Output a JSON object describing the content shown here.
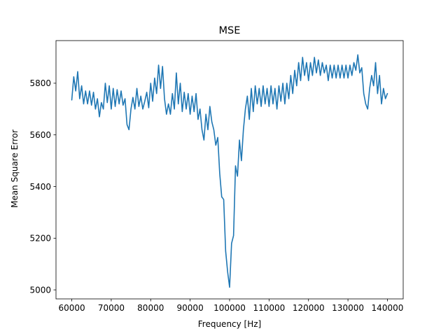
{
  "chart_data": {
    "type": "line",
    "title": "MSE",
    "xlabel": "Frequency [Hz]",
    "ylabel": "Mean Square Error",
    "xlim": [
      56000,
      144000
    ],
    "ylim": [
      4965,
      5965
    ],
    "xticks": [
      60000,
      70000,
      80000,
      90000,
      100000,
      110000,
      120000,
      130000,
      140000
    ],
    "yticks": [
      5000,
      5200,
      5400,
      5600,
      5800
    ],
    "grid": false,
    "legend": "none",
    "series": [
      {
        "color": "#1f77b4",
        "x": [
          60000,
          60500,
          61000,
          61500,
          62000,
          62500,
          63000,
          63500,
          64000,
          64500,
          65000,
          65500,
          66000,
          66500,
          67000,
          67500,
          68000,
          68500,
          69000,
          69500,
          70000,
          70500,
          71000,
          71500,
          72000,
          72500,
          73000,
          73500,
          74000,
          74500,
          75000,
          75500,
          76000,
          76500,
          77000,
          77500,
          78000,
          78500,
          79000,
          79500,
          80000,
          80500,
          81000,
          81500,
          82000,
          82500,
          83000,
          83500,
          84000,
          84500,
          85000,
          85500,
          86000,
          86500,
          87000,
          87500,
          88000,
          88500,
          89000,
          89500,
          90000,
          90500,
          91000,
          91500,
          92000,
          92500,
          93000,
          93500,
          94000,
          94500,
          95000,
          95500,
          96000,
          96500,
          97000,
          97500,
          98000,
          98500,
          99000,
          99500,
          100000,
          100500,
          101000,
          101500,
          102000,
          102500,
          103000,
          103500,
          104000,
          104500,
          105000,
          105500,
          106000,
          106500,
          107000,
          107500,
          108000,
          108500,
          109000,
          109500,
          110000,
          110500,
          111000,
          111500,
          112000,
          112500,
          113000,
          113500,
          114000,
          114500,
          115000,
          115500,
          116000,
          116500,
          117000,
          117500,
          118000,
          118500,
          119000,
          119500,
          120000,
          120500,
          121000,
          121500,
          122000,
          122500,
          123000,
          123500,
          124000,
          124500,
          125000,
          125500,
          126000,
          126500,
          127000,
          127500,
          128000,
          128500,
          129000,
          129500,
          130000,
          130500,
          131000,
          131500,
          132000,
          132500,
          133000,
          133500,
          134000,
          134500,
          135000,
          135500,
          136000,
          136500,
          137000,
          137500,
          138000,
          138500,
          139000,
          139500,
          140000
        ],
        "y": [
          5735,
          5825,
          5770,
          5845,
          5740,
          5790,
          5720,
          5770,
          5720,
          5770,
          5715,
          5765,
          5700,
          5740,
          5670,
          5725,
          5700,
          5800,
          5725,
          5790,
          5700,
          5780,
          5710,
          5775,
          5720,
          5770,
          5715,
          5740,
          5640,
          5620,
          5700,
          5745,
          5700,
          5780,
          5710,
          5750,
          5700,
          5730,
          5765,
          5705,
          5800,
          5730,
          5820,
          5760,
          5870,
          5780,
          5865,
          5740,
          5680,
          5720,
          5680,
          5760,
          5700,
          5840,
          5720,
          5800,
          5690,
          5765,
          5700,
          5760,
          5680,
          5750,
          5690,
          5760,
          5660,
          5700,
          5620,
          5580,
          5680,
          5620,
          5710,
          5650,
          5620,
          5560,
          5590,
          5450,
          5360,
          5350,
          5150,
          5070,
          5010,
          5180,
          5210,
          5480,
          5440,
          5580,
          5500,
          5620,
          5700,
          5750,
          5660,
          5780,
          5690,
          5790,
          5720,
          5780,
          5710,
          5790,
          5720,
          5780,
          5710,
          5790,
          5720,
          5780,
          5700,
          5790,
          5730,
          5800,
          5720,
          5800,
          5740,
          5830,
          5760,
          5850,
          5790,
          5880,
          5810,
          5900,
          5830,
          5880,
          5810,
          5880,
          5830,
          5900,
          5840,
          5890,
          5830,
          5880,
          5840,
          5870,
          5810,
          5870,
          5820,
          5870,
          5820,
          5870,
          5820,
          5870,
          5820,
          5870,
          5820,
          5870,
          5830,
          5880,
          5850,
          5910,
          5840,
          5860,
          5760,
          5720,
          5700,
          5780,
          5830,
          5790,
          5880,
          5760,
          5830,
          5720,
          5780,
          5740,
          5760
        ]
      }
    ]
  }
}
